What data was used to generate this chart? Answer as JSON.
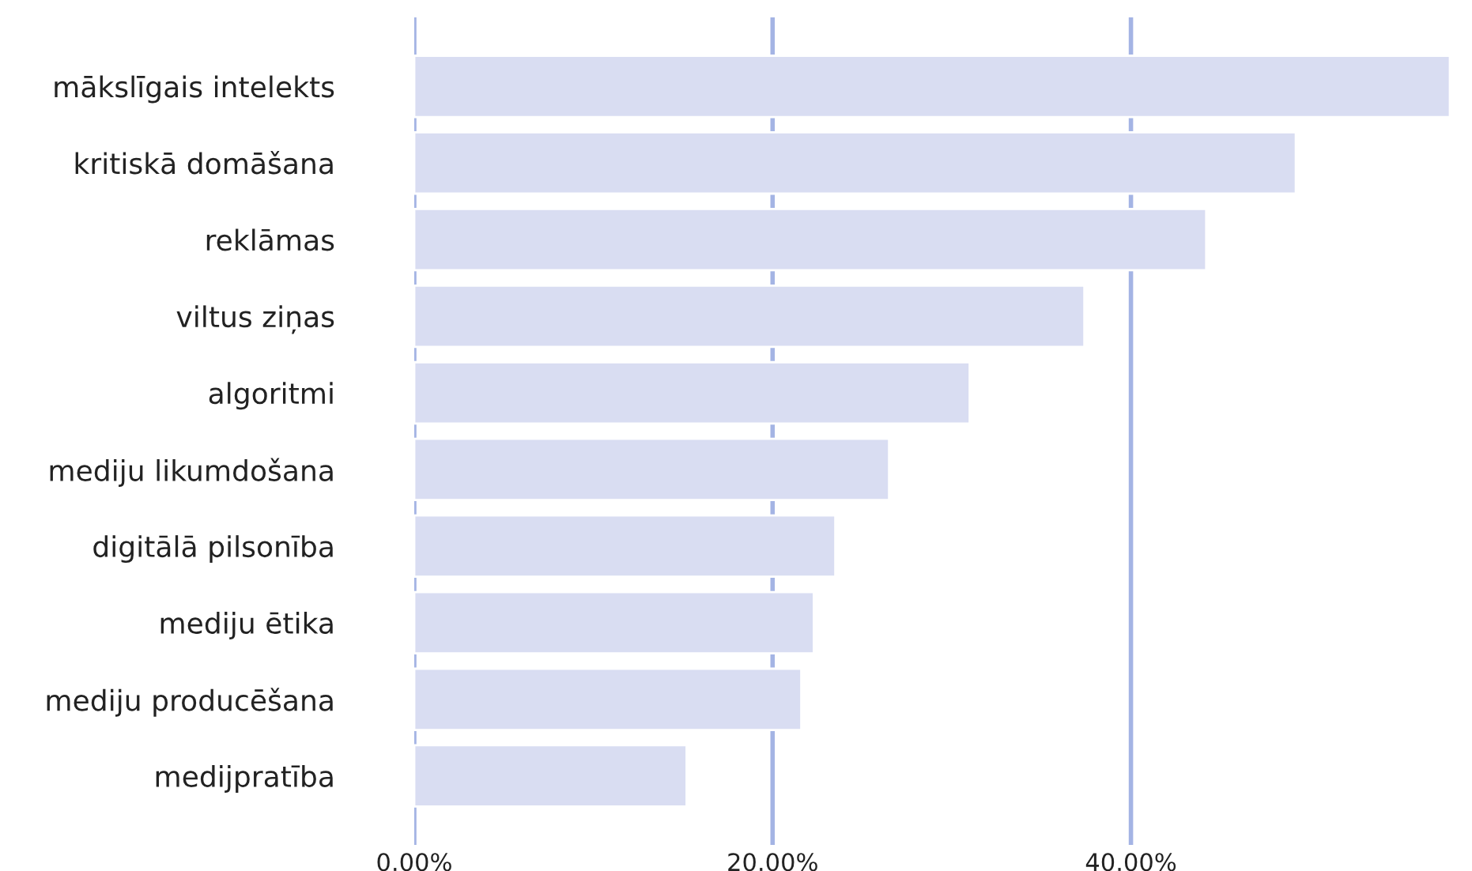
{
  "chart_data": {
    "type": "bar",
    "orientation": "horizontal",
    "categories": [
      "mākslīgais intelekts",
      "kritiskā domāšana",
      "reklāmas",
      "viltus ziņas",
      "algoritmi",
      "mediju likumdošana",
      "digitālā pilsonība",
      "mediju ētika",
      "mediju producēšana",
      "medijpratība"
    ],
    "values": [
      57.8,
      49.2,
      44.2,
      37.4,
      31.0,
      26.5,
      23.5,
      22.3,
      21.6,
      15.2
    ],
    "color": "#d9ddf2",
    "xlim": [
      0,
      57.8
    ],
    "xticks": [
      {
        "value": 0,
        "label": "0.00%"
      },
      {
        "value": 20,
        "label": "20.00%"
      },
      {
        "value": 40,
        "label": "40.00%"
      }
    ],
    "grid": "x"
  }
}
